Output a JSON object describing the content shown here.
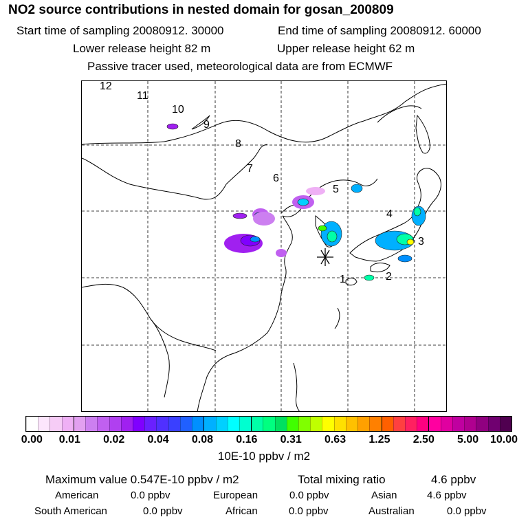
{
  "title": "NO2 source contributions in nested domain for gosan_200809",
  "header": {
    "start_label": "Start time of sampling 20080912. 30000",
    "end_label": "End time of sampling 20080912. 60000",
    "lower_label": "Lower release height   82 m",
    "upper_label": "Upper release height   62 m",
    "tracer_note": "Passive tracer used, meteorological data are from ECMWF"
  },
  "map": {
    "trajectory_labels": [
      "1",
      "2",
      "3",
      "4",
      "5",
      "6",
      "7",
      "8",
      "9",
      "10",
      "11",
      "12"
    ],
    "receptor_symbol": "star-marker"
  },
  "colorbar": {
    "ticks": [
      "0.00",
      "0.01",
      "0.02",
      "0.04",
      "0.08",
      "0.16",
      "0.31",
      "0.63",
      "1.25",
      "2.50",
      "5.00",
      "10.00"
    ],
    "unit": "10E-10 ppbv / m2",
    "colors": [
      "#ffffff",
      "#fce6fc",
      "#f6ccf6",
      "#efb0f5",
      "#e2a0f0",
      "#cc7ff0",
      "#c060f0",
      "#b040f0",
      "#a020f0",
      "#8000ff",
      "#6a20ff",
      "#5030ff",
      "#3a40ff",
      "#2060ff",
      "#0090ff",
      "#00b0ff",
      "#00d0ff",
      "#00ffff",
      "#00ffd0",
      "#00ffa8",
      "#00ff80",
      "#00e060",
      "#40ff00",
      "#80ff00",
      "#c0ff00",
      "#ffff00",
      "#ffe000",
      "#ffc000",
      "#ffa000",
      "#ff8000",
      "#ff6000",
      "#ff4040",
      "#ff2060",
      "#ff0080",
      "#ff00a0",
      "#e000a0",
      "#c000a0",
      "#b00090",
      "#900080",
      "#700070",
      "#500050"
    ]
  },
  "summary": {
    "max_label": "Maximum value  0.547E-10 ppbv / m2",
    "total_label": "Total mixing ratio",
    "total_value": "4.6 ppbv",
    "american_label": "American",
    "american_value": "0.0 ppbv",
    "european_label": "European",
    "european_value": "0.0 ppbv",
    "asian_label": "Asian",
    "asian_value": "4.6 ppbv",
    "south_american_label": "South American",
    "south_american_value": "0.0 ppbv",
    "african_label": "African",
    "african_value": "0.0 ppbv",
    "australian_label": "Australian",
    "australian_value": "0.0 ppbv"
  }
}
